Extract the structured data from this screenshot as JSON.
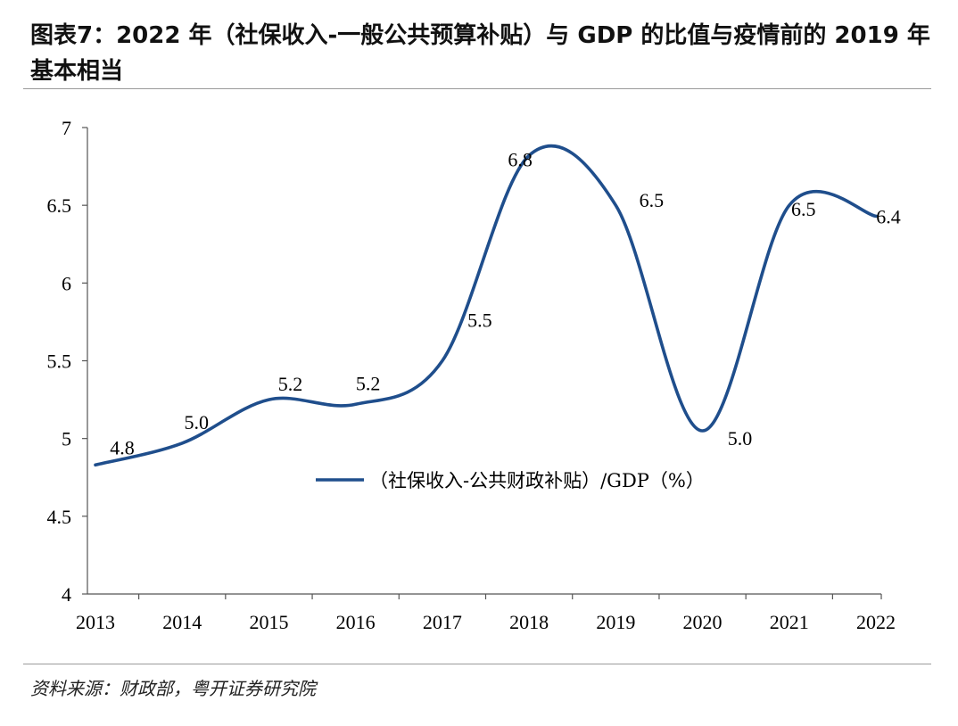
{
  "page": {
    "title": "图表7：2022 年（社保收入-一般公共预算补贴）与 GDP 的比值与疫情前的 2019 年基本相当",
    "source": "资料来源：财政部，粤开证券研究院"
  },
  "colors": {
    "line": "#1f4e8c",
    "axis": "#555555",
    "rule": "#9a9a9a"
  },
  "chart_data": {
    "type": "line",
    "title": "",
    "xlabel": "",
    "ylabel": "",
    "categories": [
      "2013",
      "2014",
      "2015",
      "2016",
      "2017",
      "2018",
      "2019",
      "2020",
      "2021",
      "2022"
    ],
    "ylim": [
      4,
      7
    ],
    "yticks": [
      4,
      4.5,
      5,
      5.5,
      6,
      6.5,
      7
    ],
    "ytick_labels": [
      "4",
      "4.5",
      "5",
      "5.5",
      "6",
      "6.5",
      "7"
    ],
    "grid": false,
    "legend_position": "center",
    "series": [
      {
        "name": "（社保收入-公共财政补贴）/GDP（%）",
        "smooth": true,
        "values": [
          4.83,
          4.97,
          5.25,
          5.22,
          5.5,
          6.82,
          6.5,
          5.05,
          6.5,
          6.43
        ],
        "labels": [
          "4.8",
          "5.0",
          "5.2",
          "5.2",
          "5.5",
          "6.8",
          "6.5",
          "5.0",
          "6.5",
          "6.4"
        ]
      }
    ]
  }
}
